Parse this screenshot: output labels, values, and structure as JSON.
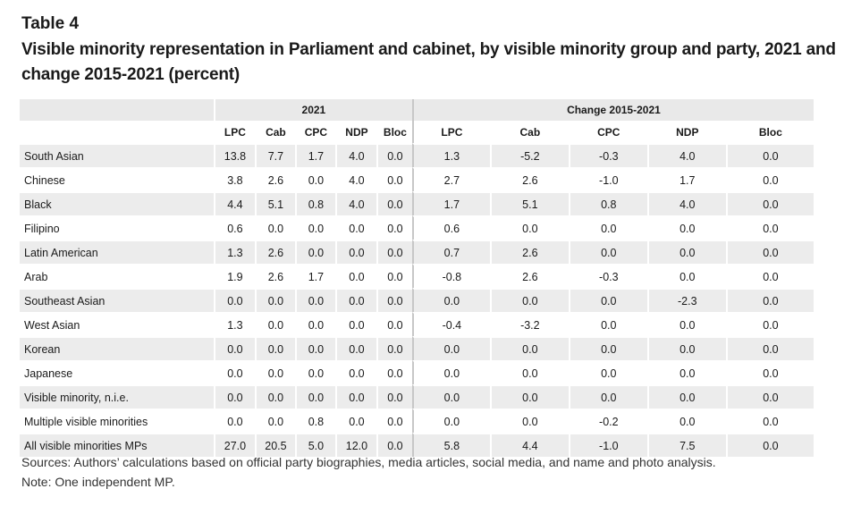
{
  "table_number": "Table 4",
  "title": "Visible minority representation in Parliament and cabinet, by visible minority group and party, 2021 and change 2015-2021 (percent)",
  "group_headers": [
    "2021",
    "Change 2015-2021"
  ],
  "columns_2021": [
    "LPC",
    "Cab",
    "CPC",
    "NDP",
    "Bloc"
  ],
  "columns_change": [
    "LPC",
    "Cab",
    "CPC",
    "NDP",
    "Bloc"
  ],
  "rows": [
    {
      "label": "South Asian",
      "y2021": [
        "13.8",
        "7.7",
        "1.7",
        "4.0",
        "0.0"
      ],
      "change": [
        "1.3",
        "-5.2",
        "-0.3",
        "4.0",
        "0.0"
      ]
    },
    {
      "label": "Chinese",
      "y2021": [
        "3.8",
        "2.6",
        "0.0",
        "4.0",
        "0.0"
      ],
      "change": [
        "2.7",
        "2.6",
        "-1.0",
        "1.7",
        "0.0"
      ]
    },
    {
      "label": "Black",
      "y2021": [
        "4.4",
        "5.1",
        "0.8",
        "4.0",
        "0.0"
      ],
      "change": [
        "1.7",
        "5.1",
        "0.8",
        "4.0",
        "0.0"
      ]
    },
    {
      "label": "Filipino",
      "y2021": [
        "0.6",
        "0.0",
        "0.0",
        "0.0",
        "0.0"
      ],
      "change": [
        "0.6",
        "0.0",
        "0.0",
        "0.0",
        "0.0"
      ]
    },
    {
      "label": "Latin American",
      "y2021": [
        "1.3",
        "2.6",
        "0.0",
        "0.0",
        "0.0"
      ],
      "change": [
        "0.7",
        "2.6",
        "0.0",
        "0.0",
        "0.0"
      ]
    },
    {
      "label": "Arab",
      "y2021": [
        "1.9",
        "2.6",
        "1.7",
        "0.0",
        "0.0"
      ],
      "change": [
        "-0.8",
        "2.6",
        "-0.3",
        "0.0",
        "0.0"
      ]
    },
    {
      "label": "Southeast Asian",
      "y2021": [
        "0.0",
        "0.0",
        "0.0",
        "0.0",
        "0.0"
      ],
      "change": [
        "0.0",
        "0.0",
        "0.0",
        "-2.3",
        "0.0"
      ]
    },
    {
      "label": "West Asian",
      "y2021": [
        "1.3",
        "0.0",
        "0.0",
        "0.0",
        "0.0"
      ],
      "change": [
        "-0.4",
        "-3.2",
        "0.0",
        "0.0",
        "0.0"
      ]
    },
    {
      "label": "Korean",
      "y2021": [
        "0.0",
        "0.0",
        "0.0",
        "0.0",
        "0.0"
      ],
      "change": [
        "0.0",
        "0.0",
        "0.0",
        "0.0",
        "0.0"
      ]
    },
    {
      "label": "Japanese",
      "y2021": [
        "0.0",
        "0.0",
        "0.0",
        "0.0",
        "0.0"
      ],
      "change": [
        "0.0",
        "0.0",
        "0.0",
        "0.0",
        "0.0"
      ]
    },
    {
      "label": "Visible minority, n.i.e.",
      "y2021": [
        "0.0",
        "0.0",
        "0.0",
        "0.0",
        "0.0"
      ],
      "change": [
        "0.0",
        "0.0",
        "0.0",
        "0.0",
        "0.0"
      ]
    },
    {
      "label": "Multiple visible minorities",
      "y2021": [
        "0.0",
        "0.0",
        "0.8",
        "0.0",
        "0.0"
      ],
      "change": [
        "0.0",
        "0.0",
        "-0.2",
        "0.0",
        "0.0"
      ]
    },
    {
      "label": "All visible minorities MPs",
      "y2021": [
        "27.0",
        "20.5",
        "5.0",
        "12.0",
        "0.0"
      ],
      "change": [
        "5.8",
        "4.4",
        "-1.0",
        "7.5",
        "0.0"
      ]
    }
  ],
  "notes": {
    "sources": "Sources: Authors’ calculations based on official party biographies, media articles, social media, and name and photo analysis.",
    "note": "Note: One independent MP."
  }
}
